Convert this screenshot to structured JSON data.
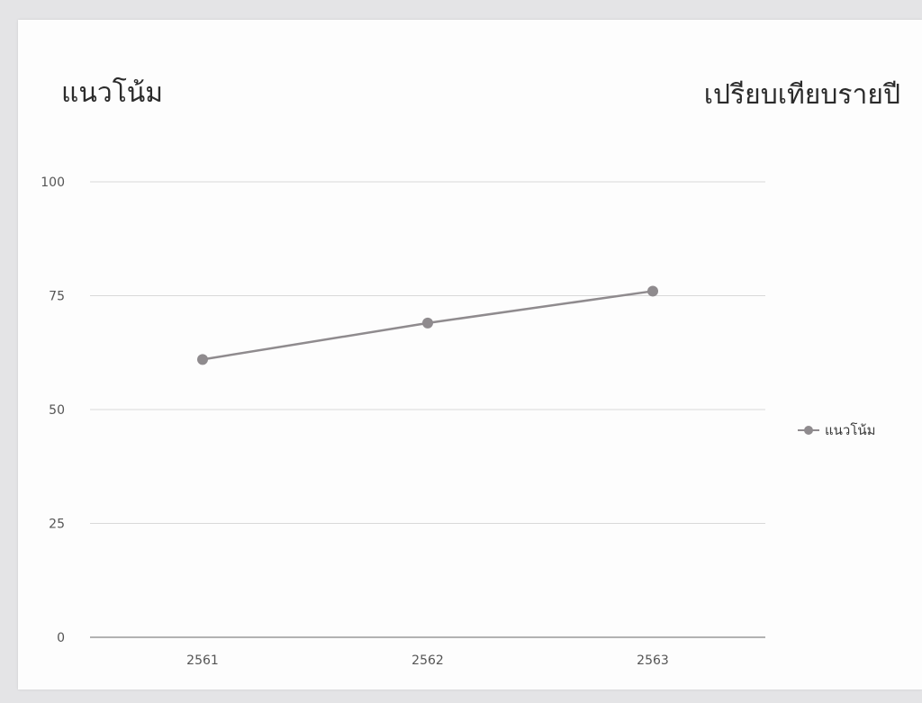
{
  "header": {
    "title": "แนวโน้ม",
    "subtitle": "เปรียบเทียบรายปี"
  },
  "colors": {
    "series": "#8f8b8e",
    "grid": "#d9d9d9",
    "baseline": "#9a9a9a",
    "text": "#2b2b2b",
    "tick": "#555555"
  },
  "chart_data": {
    "type": "line",
    "categories": [
      "2561",
      "2562",
      "2563"
    ],
    "series": [
      {
        "name": "แนวโน้ม",
        "values": [
          61,
          69,
          76
        ]
      }
    ],
    "ylim": [
      0,
      100
    ],
    "yticks": [
      "0",
      "25",
      "50",
      "75",
      "100"
    ],
    "grid": true,
    "legend_position": "right"
  }
}
